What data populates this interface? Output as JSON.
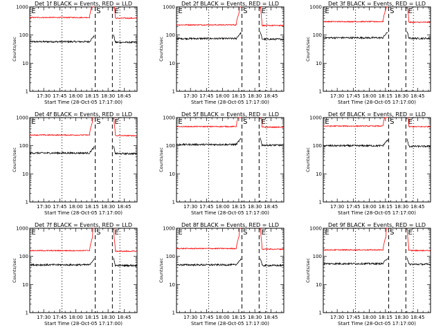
{
  "figure": {
    "xlabel": "Start Time (28-Oct-05 17:17:00)",
    "ylabel": "Counts/sec",
    "x_tick_labels": [
      "17:30",
      "17:45",
      "18:00",
      "18:15",
      "18:30",
      "18:45"
    ],
    "y_tick_labels": [
      "1",
      "10",
      "100",
      "1000"
    ],
    "markers": [
      "E",
      "S",
      "E"
    ],
    "colors": {
      "events": "#000000",
      "lld": "#ff0000"
    }
  },
  "chart_data": [
    {
      "type": "line",
      "title": "Det 1f BLACK = Events, RED = LLD",
      "xlabel": "Start Time (28-Oct-05 17:17:00)",
      "ylabel": "Counts/sec",
      "x_ticks": [
        "17:30",
        "17:45",
        "18:00",
        "18:15",
        "18:30",
        "18:45"
      ],
      "y_scale": "log",
      "ylim": [
        1,
        1000
      ],
      "markers": [
        "E",
        "S",
        "E"
      ],
      "series": [
        {
          "name": "BLACK = Events",
          "color": "#000000",
          "level": 58
        },
        {
          "name": "RED = LLD",
          "color": "#ff0000",
          "level": 420
        }
      ]
    },
    {
      "type": "line",
      "title": "Det 2f BLACK = Events, RED = LLD",
      "xlabel": "Start Time (28-Oct-05 17:17:00)",
      "ylabel": "Counts/sec",
      "x_ticks": [
        "17:30",
        "17:45",
        "18:00",
        "18:15",
        "18:30",
        "18:45"
      ],
      "y_scale": "log",
      "ylim": [
        1,
        1000
      ],
      "markers": [
        "E",
        "S",
        "E"
      ],
      "series": [
        {
          "name": "BLACK = Events",
          "color": "#000000",
          "level": 75
        },
        {
          "name": "RED = LLD",
          "color": "#ff0000",
          "level": 230
        }
      ]
    },
    {
      "type": "line",
      "title": "Det 3f BLACK = Events, RED = LLD",
      "xlabel": "Start Time (28-Oct-05 17:17:00)",
      "ylabel": "Counts/sec",
      "x_ticks": [
        "17:30",
        "17:45",
        "18:00",
        "18:15",
        "18:30",
        "18:45"
      ],
      "y_scale": "log",
      "ylim": [
        1,
        1000
      ],
      "markers": [
        "E",
        "S",
        "E"
      ],
      "series": [
        {
          "name": "BLACK = Events",
          "color": "#000000",
          "level": 80
        },
        {
          "name": "RED = LLD",
          "color": "#ff0000",
          "level": 300
        }
      ]
    },
    {
      "type": "line",
      "title": "Det 4f BLACK = Events, RED = LLD",
      "xlabel": "Start Time (28-Oct-05 17:17:00)",
      "ylabel": "Counts/sec",
      "x_ticks": [
        "17:30",
        "17:45",
        "18:00",
        "18:15",
        "18:30",
        "18:45"
      ],
      "y_scale": "log",
      "ylim": [
        1,
        1000
      ],
      "markers": [
        "E",
        "S",
        "E"
      ],
      "series": [
        {
          "name": "BLACK = Events",
          "color": "#000000",
          "level": 55
        },
        {
          "name": "RED = LLD",
          "color": "#ff0000",
          "level": 240
        }
      ]
    },
    {
      "type": "line",
      "title": "Det 5f BLACK = Events, RED = LLD",
      "xlabel": "Start Time (28-Oct-05 17:17:00)",
      "ylabel": "Counts/sec",
      "x_ticks": [
        "17:30",
        "17:45",
        "18:00",
        "18:15",
        "18:30",
        "18:45"
      ],
      "y_scale": "log",
      "ylim": [
        1,
        1000
      ],
      "markers": [
        "E",
        "S",
        "E"
      ],
      "series": [
        {
          "name": "BLACK = Events",
          "color": "#000000",
          "level": 110
        },
        {
          "name": "RED = LLD",
          "color": "#ff0000",
          "level": 480
        }
      ]
    },
    {
      "type": "line",
      "title": "Det 6f BLACK = Events, RED = LLD",
      "xlabel": "Start Time (28-Oct-05 17:17:00)",
      "ylabel": "Counts/sec",
      "x_ticks": [
        "17:30",
        "17:45",
        "18:00",
        "18:15",
        "18:30",
        "18:45"
      ],
      "y_scale": "log",
      "ylim": [
        1,
        1000
      ],
      "markers": [
        "E",
        "S",
        "E"
      ],
      "series": [
        {
          "name": "BLACK = Events",
          "color": "#000000",
          "level": 100
        },
        {
          "name": "RED = LLD",
          "color": "#ff0000",
          "level": 500
        }
      ]
    },
    {
      "type": "line",
      "title": "Det 7f BLACK = Events, RED = LLD",
      "xlabel": "Start Time (28-Oct-05 17:17:00)",
      "ylabel": "Counts/sec",
      "x_ticks": [
        "17:30",
        "17:45",
        "18:00",
        "18:15",
        "18:30",
        "18:45"
      ],
      "y_scale": "log",
      "ylim": [
        1,
        1000
      ],
      "markers": [
        "E",
        "S",
        "E"
      ],
      "series": [
        {
          "name": "BLACK = Events",
          "color": "#000000",
          "level": 50
        },
        {
          "name": "RED = LLD",
          "color": "#ff0000",
          "level": 160
        }
      ]
    },
    {
      "type": "line",
      "title": "Det 8f BLACK = Events, RED = LLD",
      "xlabel": "Start Time (28-Oct-05 17:17:00)",
      "ylabel": "Counts/sec",
      "x_ticks": [
        "17:30",
        "17:45",
        "18:00",
        "18:15",
        "18:30",
        "18:45"
      ],
      "y_scale": "log",
      "ylim": [
        1,
        1000
      ],
      "markers": [
        "E",
        "S",
        "E"
      ],
      "series": [
        {
          "name": "BLACK = Events",
          "color": "#000000",
          "level": 50
        },
        {
          "name": "RED = LLD",
          "color": "#ff0000",
          "level": 190
        }
      ]
    },
    {
      "type": "line",
      "title": "Det 9f BLACK = Events, RED = LLD",
      "xlabel": "Start Time (28-Oct-05 17:17:00)",
      "ylabel": "Counts/sec",
      "x_ticks": [
        "17:30",
        "17:45",
        "18:00",
        "18:15",
        "18:30",
        "18:45"
      ],
      "y_scale": "log",
      "ylim": [
        1,
        1000
      ],
      "markers": [
        "E",
        "S",
        "E"
      ],
      "series": [
        {
          "name": "BLACK = Events",
          "color": "#000000",
          "level": 55
        },
        {
          "name": "RED = LLD",
          "color": "#ff0000",
          "level": 170
        }
      ]
    }
  ]
}
